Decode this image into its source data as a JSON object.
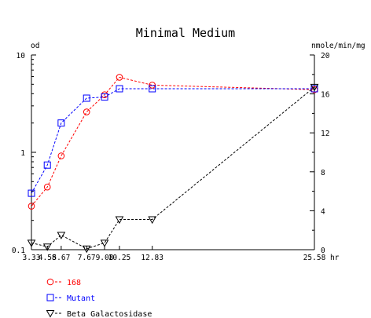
{
  "chart_data": {
    "type": "line",
    "title": "Minimal Medium",
    "y_left_label": "od",
    "y_right_label": "nmole/min/mg",
    "x_unit_label": "hr",
    "x_ticks": [
      "3.33",
      "4.58",
      "5.67",
      "7.67",
      "9.08",
      "10.25",
      "12.83",
      "25.58"
    ],
    "y_left": {
      "scale": "log",
      "range": [
        0.1,
        10
      ],
      "tick_labels": [
        "10",
        "1",
        "0.1"
      ]
    },
    "y_right": {
      "scale": "linear",
      "range": [
        0,
        20
      ],
      "tick_labels": [
        "20",
        "16",
        "12",
        "8",
        "4",
        "0"
      ]
    },
    "x": [
      3.33,
      4.58,
      5.67,
      7.67,
      9.08,
      10.25,
      12.83,
      25.58
    ],
    "series": [
      {
        "name": "168",
        "axis": "left",
        "marker": "circle",
        "color": "#ff0000",
        "values": [
          0.28,
          0.44,
          0.92,
          2.6,
          3.9,
          5.9,
          4.9,
          4.4
        ]
      },
      {
        "name": "Mutant",
        "axis": "left",
        "marker": "square",
        "color": "#0000ff",
        "values": [
          0.38,
          0.74,
          2.0,
          3.6,
          3.7,
          4.5,
          4.5,
          4.5
        ]
      },
      {
        "name": "Beta Galactosidase",
        "axis": "right",
        "marker": "triangle",
        "color": "#000000",
        "values": [
          0.7,
          0.3,
          1.5,
          0.1,
          0.7,
          3.1,
          3.1,
          16.7
        ]
      }
    ]
  }
}
